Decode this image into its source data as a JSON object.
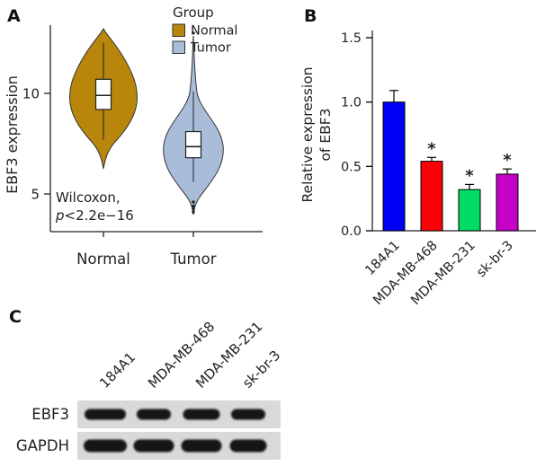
{
  "figure": {
    "panels": {
      "a": "A",
      "b": "B",
      "c": "C"
    }
  },
  "chart_data": [
    {
      "id": "panel-a-violin",
      "type": "violin",
      "ylabel": "EBF3 expression",
      "ylim": [
        3.5,
        13.8
      ],
      "yticks": [
        5,
        10
      ],
      "categories": [
        "Normal",
        "Tumor"
      ],
      "legend": {
        "position": "top-right",
        "title": "Group",
        "entries": [
          {
            "label": "Normal",
            "color": "#b8860b"
          },
          {
            "label": "Tumor",
            "color": "#a9bdd9"
          }
        ]
      },
      "annotation": {
        "line1": "Wilcoxon,",
        "p_italic": "p",
        "p_rest": "<2.2e−16"
      },
      "series": [
        {
          "name": "Normal",
          "color": "#b8860b",
          "median": 9.9,
          "q1": 9.2,
          "q3": 10.7,
          "whisker_low": 7.7,
          "whisker_high": 12.5,
          "violin_min": 6.5,
          "violin_max": 13.3,
          "outliers": []
        },
        {
          "name": "Tumor",
          "color": "#a9bdd9",
          "median": 7.35,
          "q1": 6.8,
          "q3": 8.1,
          "whisker_low": 5.6,
          "whisker_high": 10.1,
          "violin_min": 4.0,
          "violin_max": 12.9,
          "outliers": [
            13.0,
            4.6,
            4.4,
            4.25,
            4.1
          ]
        }
      ],
      "grid": false
    },
    {
      "id": "panel-b-bar",
      "type": "bar",
      "ylabel_line1": "Relative expression",
      "ylabel_line2": "of EBF3",
      "ylim": [
        0,
        1.5
      ],
      "yticks": [
        0,
        0.5,
        1.0,
        1.5
      ],
      "ytick_labels": [
        "0.0",
        "0.5",
        "1.0",
        "1.5"
      ],
      "categories": [
        "184A1",
        "MDA-MB-468",
        "MDA-MB-231",
        "sk-br-3"
      ],
      "values": [
        1.0,
        0.54,
        0.32,
        0.44
      ],
      "errors": [
        0.09,
        0.03,
        0.04,
        0.04
      ],
      "colors": [
        "#0000f5",
        "#fb0007",
        "#00db63",
        "#c501c6"
      ],
      "significance": [
        "",
        "*",
        "*",
        "*"
      ],
      "grid": false
    },
    {
      "id": "panel-c-western-blot",
      "type": "western_blot",
      "lanes": [
        "184A1",
        "MDA-MB-468",
        "MDA-MB-231",
        "sk-br-3"
      ],
      "rows": [
        "EBF3",
        "GAPDH"
      ],
      "band_widths": [
        [
          46,
          38,
          41,
          38
        ],
        [
          48,
          45,
          45,
          41
        ]
      ],
      "band_heights": [
        12,
        14
      ],
      "strip_color": "#d9d9d9",
      "band_color": "#161616"
    }
  ]
}
